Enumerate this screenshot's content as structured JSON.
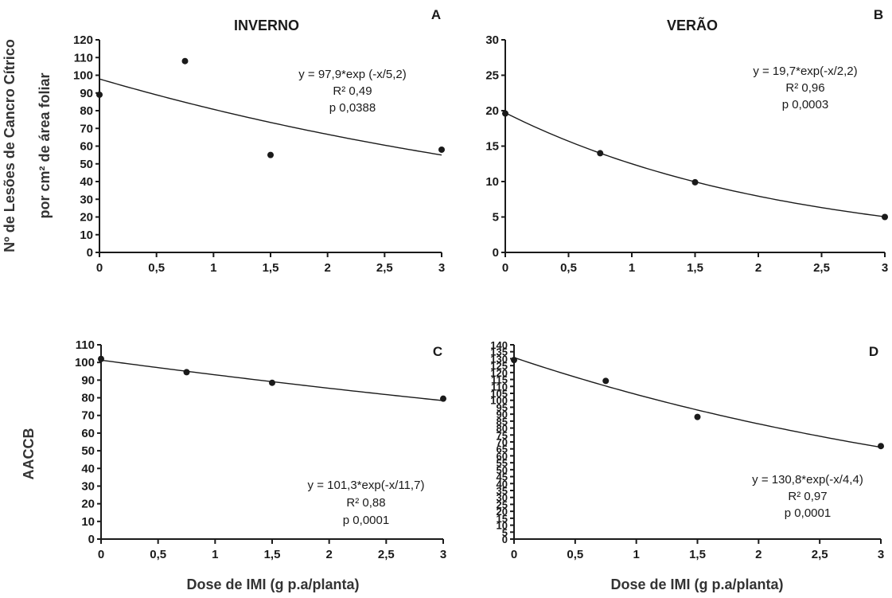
{
  "figure": {
    "ylabel_top_line1": "Nº de Lesões de Cancro Cítrico",
    "ylabel_top_line2": "por cm² de área foliar",
    "ylabel_bottom": "AACCB",
    "xlabel": "Dose de IMI (g p.a/planta)",
    "column_titles": [
      "INVERNO",
      "VERÃO"
    ],
    "colors": {
      "ink": "#1a1a1a",
      "background": "#ffffff"
    }
  },
  "chart_data": [
    {
      "panel": "A",
      "type": "scatter",
      "title": "INVERNO",
      "xlabel": "",
      "ylabel": "Nº de Lesões de Cancro Cítrico por cm² de área foliar",
      "xlim": [
        0,
        3
      ],
      "ylim": [
        0,
        120
      ],
      "x_ticks": [
        "0",
        "0,5",
        "1",
        "1,5",
        "2",
        "2,5",
        "3"
      ],
      "y_ticks": [
        "0",
        "10",
        "20",
        "30",
        "40",
        "50",
        "60",
        "70",
        "80",
        "90",
        "100",
        "110",
        "120"
      ],
      "points": [
        [
          0,
          89
        ],
        [
          0.75,
          108
        ],
        [
          1.5,
          55
        ],
        [
          3,
          58
        ]
      ],
      "fit": {
        "a": 97.9,
        "b": 5.2,
        "x_range": [
          0,
          3
        ]
      },
      "annotations": [
        "y = 97,9*exp (-x/5,2)",
        "R² 0,49",
        "p 0,0388"
      ],
      "grid": false
    },
    {
      "panel": "B",
      "type": "scatter",
      "title": "VERÃO",
      "xlabel": "",
      "ylabel": "",
      "xlim": [
        0,
        3
      ],
      "ylim": [
        0,
        30
      ],
      "x_ticks": [
        "0",
        "0,5",
        "1",
        "1,5",
        "2",
        "2,5",
        "3"
      ],
      "y_ticks": [
        "0",
        "5",
        "10",
        "15",
        "20",
        "25",
        "30"
      ],
      "points": [
        [
          0,
          19.6
        ],
        [
          0.75,
          14
        ],
        [
          1.5,
          9.9
        ],
        [
          3,
          5
        ]
      ],
      "fit": {
        "a": 19.7,
        "b": 2.2,
        "x_range": [
          0,
          3
        ]
      },
      "annotations": [
        "y = 19,7*exp(-x/2,2)",
        "R² 0,96",
        "p  0,0003"
      ],
      "grid": false
    },
    {
      "panel": "C",
      "type": "scatter",
      "title": "",
      "xlabel": "Dose de IMI (g p.a/planta)",
      "ylabel": "AACCB",
      "xlim": [
        0,
        3
      ],
      "ylim": [
        0,
        110
      ],
      "x_ticks": [
        "0",
        "0,5",
        "1",
        "1,5",
        "2",
        "2,5",
        "3"
      ],
      "y_ticks": [
        "0",
        "10",
        "20",
        "30",
        "40",
        "50",
        "60",
        "70",
        "80",
        "90",
        "100",
        "110"
      ],
      "points": [
        [
          0,
          102
        ],
        [
          0.75,
          94.5
        ],
        [
          1.5,
          88.5
        ],
        [
          3,
          79.5
        ]
      ],
      "fit": {
        "a": 101.3,
        "b": 11.7,
        "x_range": [
          0,
          3
        ]
      },
      "annotations": [
        "y = 101,3*exp(-x/11,7)",
        "R² 0,88",
        "p 0,0001"
      ],
      "grid": false
    },
    {
      "panel": "D",
      "type": "scatter",
      "title": "",
      "xlabel": "Dose de IMI (g p.a/planta)",
      "ylabel": "",
      "xlim": [
        0,
        3
      ],
      "ylim": [
        0,
        140
      ],
      "x_ticks": [
        "0",
        "0,5",
        "1",
        "1,5",
        "2",
        "2,5",
        "3"
      ],
      "y_ticks": [
        "0",
        "5",
        "10",
        "15",
        "20",
        "25",
        "30",
        "35",
        "40",
        "45",
        "50",
        "55",
        "60",
        "65",
        "70",
        "75",
        "80",
        "85",
        "90",
        "95",
        "100",
        "105",
        "110",
        "115",
        "120",
        "125",
        "130",
        "135",
        "140"
      ],
      "points": [
        [
          0,
          129
        ],
        [
          0.75,
          114
        ],
        [
          1.5,
          88
        ],
        [
          3,
          67
        ]
      ],
      "fit": {
        "a": 130.8,
        "b": 4.4,
        "x_range": [
          0,
          3
        ]
      },
      "annotations": [
        "y = 130,8*exp(-x/4,4)",
        "R² 0,97",
        "p 0,0001"
      ],
      "grid": false
    }
  ]
}
